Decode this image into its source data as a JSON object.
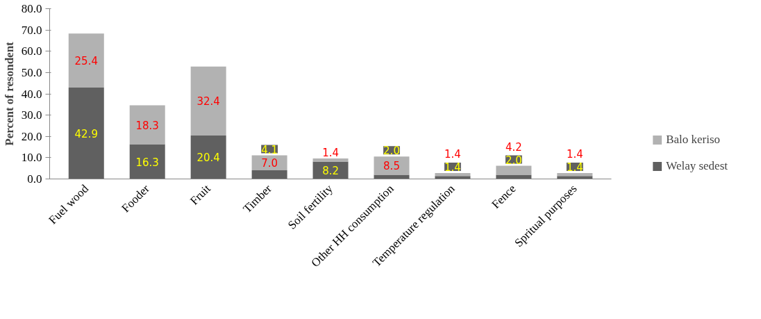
{
  "chart_data": {
    "type": "bar",
    "stacked": true,
    "ylabel": "Percent of resondent",
    "categories": [
      "Fuel wood",
      "Fooder",
      "Fruit",
      "Timber",
      "Soil fertility",
      "Other HH consumption",
      "Temperature regulation",
      "Fence",
      "Spritual purposes"
    ],
    "series": [
      {
        "name": "Welay sedest",
        "color": "#606060",
        "values": [
          42.9,
          16.3,
          20.4,
          4.1,
          8.2,
          2.0,
          1.4,
          2.0,
          1.4
        ],
        "value_labels": [
          "42.9",
          "16.3",
          "20.4",
          "4.1",
          "8.2",
          "2.0",
          "1.4",
          "2.0",
          "1.4"
        ]
      },
      {
        "name": "Balo keriso",
        "color": "#b2b2b2",
        "values": [
          25.4,
          18.3,
          32.4,
          7.0,
          1.4,
          8.5,
          1.4,
          4.2,
          1.4
        ],
        "value_labels": [
          "25.4",
          "18.3",
          "32.4",
          "7.0",
          "1.4",
          "8.5",
          "1.4",
          "4.2",
          "1.4"
        ]
      }
    ],
    "ylim": [
      0,
      80
    ],
    "yticks": [
      {
        "value": 0,
        "label": "0.0"
      },
      {
        "value": 10,
        "label": "10.0"
      },
      {
        "value": 20,
        "label": "20.0"
      },
      {
        "value": 30,
        "label": "30.0"
      },
      {
        "value": 40,
        "label": "40.0"
      },
      {
        "value": 50,
        "label": "50.0"
      },
      {
        "value": 60,
        "label": "60.0"
      },
      {
        "value": 70,
        "label": "70.0"
      },
      {
        "value": 80,
        "label": "80.0"
      }
    ],
    "data_labels": true,
    "grid": false,
    "legend": "right"
  }
}
